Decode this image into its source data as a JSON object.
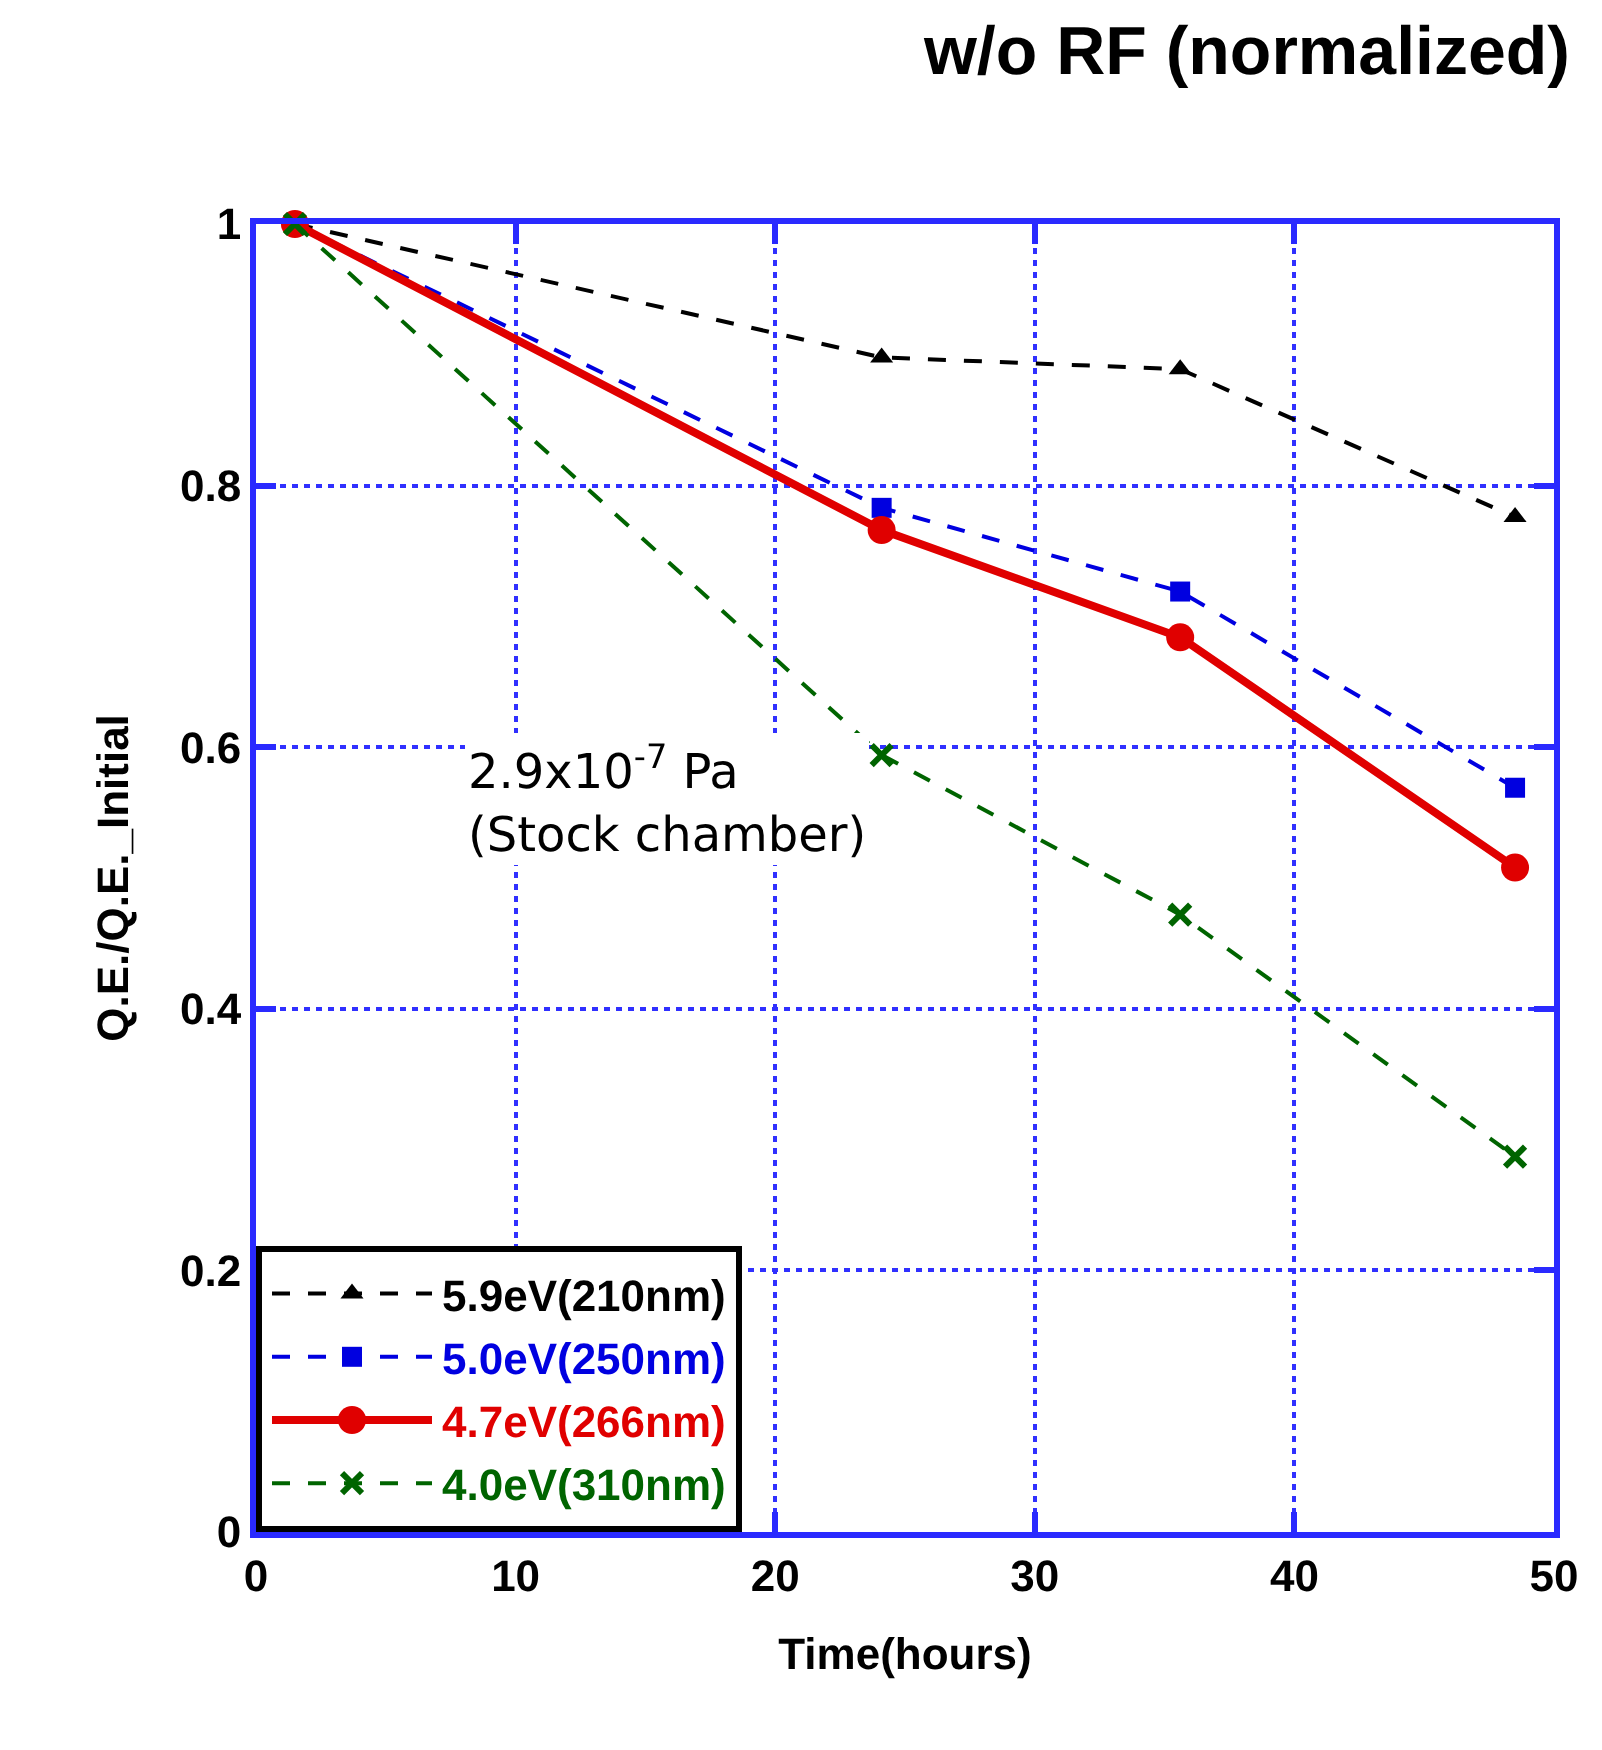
{
  "chart_data": {
    "type": "line",
    "title": "w/o RF (normalized)",
    "xlabel": "Time(hours)",
    "ylabel": "Q.E./Q.E._Initial",
    "x": [
      1.5,
      24.1,
      35.6,
      48.5
    ],
    "series": [
      {
        "name": "5.9eV(210nm)",
        "color": "#000000",
        "values": [
          1,
          0.898,
          0.889,
          0.776
        ],
        "marker": "triangle",
        "line_style": "dashed"
      },
      {
        "name": "5.0eV(250nm)",
        "color": "#0000e0",
        "values": [
          1,
          0.783,
          0.719,
          0.569
        ],
        "marker": "square",
        "line_style": "dashed"
      },
      {
        "name": "4.7eV(266nm)",
        "color": "#e00000",
        "values": [
          1,
          0.766,
          0.684,
          0.508
        ],
        "marker": "circle",
        "line_style": "solid"
      },
      {
        "name": "4.0eV(310nm)",
        "color": "#006400",
        "values": [
          1,
          0.594,
          0.472,
          0.287
        ],
        "marker": "cross",
        "line_style": "dashed"
      }
    ],
    "xlim": [
      0,
      50
    ],
    "xticks": [
      0,
      10,
      20,
      30,
      40,
      50
    ],
    "ylim": [
      0,
      1
    ],
    "yticks": [
      0,
      0.2,
      0.4,
      0.6,
      0.8,
      1
    ],
    "grid": true,
    "legend": "bottom left",
    "annotations": [
      "2.9x10$^{-7}$ Pa\n(Stock chamber)"
    ]
  }
}
